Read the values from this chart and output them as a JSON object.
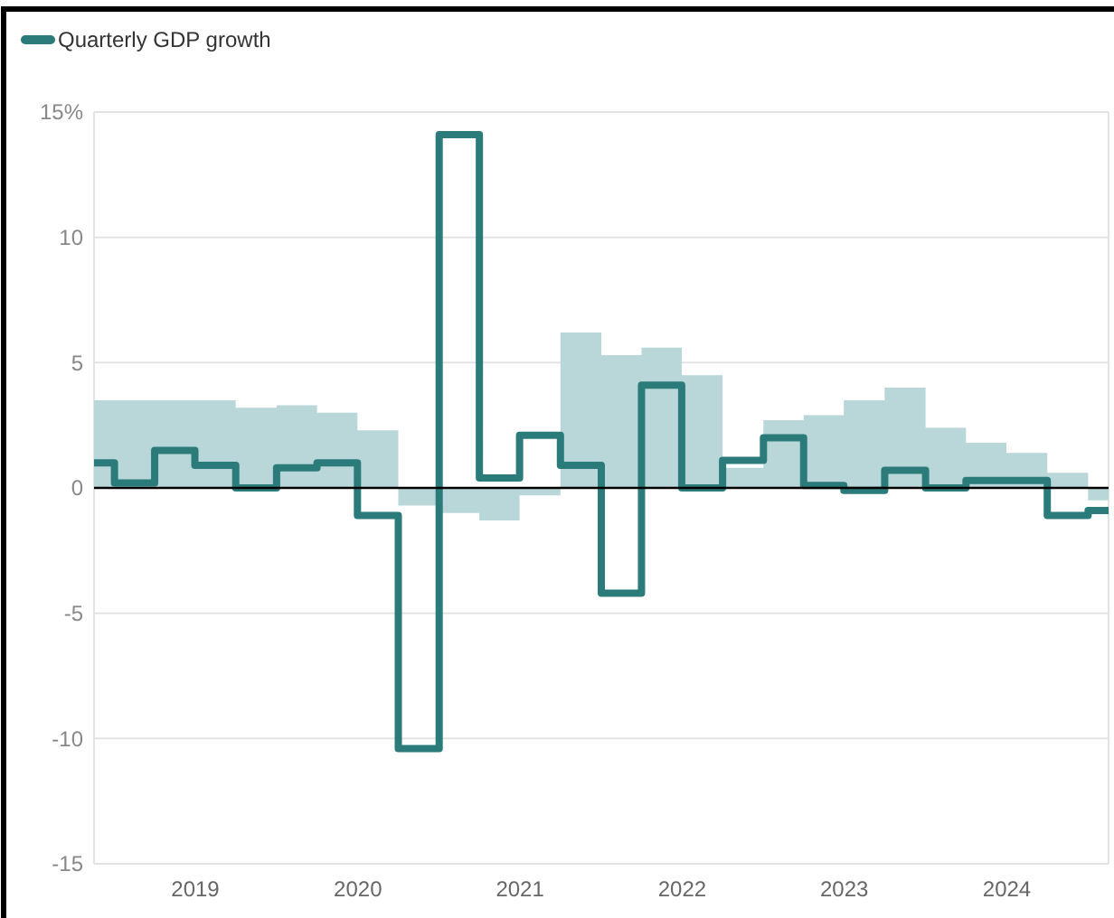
{
  "chart_data": {
    "type": "step",
    "x": [
      "2018-11-15",
      "2019-02-15",
      "2019-05-15",
      "2019-08-15",
      "2019-11-15",
      "2020-02-15",
      "2020-05-15",
      "2020-08-15",
      "2020-11-15",
      "2021-02-15",
      "2021-05-15",
      "2021-08-15",
      "2021-11-15",
      "2022-02-15",
      "2022-05-15",
      "2022-08-15",
      "2022-11-15",
      "2023-02-15",
      "2023-05-15",
      "2023-08-15",
      "2023-11-15",
      "2024-02-15",
      "2024-05-15",
      "2024-08-15",
      "2024-11-15",
      "2025-02-15"
    ],
    "series": [
      {
        "type": "area",
        "color": "#b9d6d8",
        "values": [
          3.5,
          3.5,
          3.5,
          3.5,
          3.2,
          3.3,
          3.0,
          2.3,
          -0.7,
          -1.0,
          -1.3,
          -0.3,
          6.2,
          5.3,
          5.6,
          4.5,
          0.8,
          2.7,
          2.9,
          3.5,
          4.0,
          2.4,
          1.8,
          1.4,
          0.6,
          -0.5
        ]
      },
      {
        "name": "Quarterly GDP growth",
        "color": "#2a7b7a",
        "values": [
          1.0,
          0.2,
          1.5,
          0.9,
          0.0,
          0.8,
          1.0,
          -1.1,
          -10.4,
          14.1,
          0.4,
          2.1,
          0.9,
          -4.2,
          4.1,
          0.0,
          1.1,
          2.0,
          0.1,
          -0.1,
          0.7,
          0.0,
          0.3,
          0.3,
          -1.1,
          -0.9
        ]
      }
    ],
    "xlim": [
      "2018-11-15",
      "2025-02-15"
    ],
    "xticks": [
      {
        "value": "2019-07-01",
        "label": "2019"
      },
      {
        "value": "2020-07-01",
        "label": "2020"
      },
      {
        "value": "2021-07-01",
        "label": "2021"
      },
      {
        "value": "2022-07-01",
        "label": "2022"
      },
      {
        "value": "2023-07-01",
        "label": "2023"
      },
      {
        "value": "2024-07-01",
        "label": "2024"
      }
    ],
    "ylim": [
      -15,
      15
    ],
    "yticks": [
      {
        "value": 15,
        "label": "15%"
      },
      10,
      5,
      0,
      -5,
      -10,
      -15
    ],
    "ref_lines": [
      {
        "axis": "y",
        "value": 0,
        "color": "#000000"
      }
    ],
    "grid": "y",
    "legend": "top left",
    "line_style": "solid",
    "marker": "none"
  }
}
